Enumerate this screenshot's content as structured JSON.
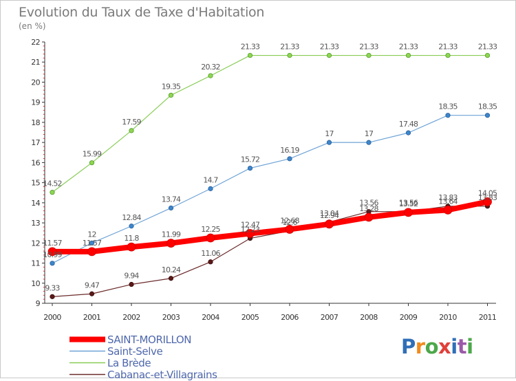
{
  "header": {
    "title": "Evolution du Taux de Taxe d'Habitation",
    "subtitle": "(en %)"
  },
  "chart_data": {
    "type": "line",
    "title": "Evolution du Taux de Taxe d'Habitation",
    "subtitle": "(en %)",
    "xlabel": "",
    "ylabel": "",
    "x": [
      "2000",
      "2001",
      "2002",
      "2003",
      "2004",
      "2005",
      "2006",
      "2007",
      "2008",
      "2009",
      "2010",
      "2011"
    ],
    "ylim": [
      9,
      22
    ],
    "yticks": [
      9,
      10,
      11,
      12,
      13,
      14,
      15,
      16,
      17,
      18,
      19,
      20,
      21,
      22
    ],
    "grid": false,
    "legend_position": "bottom-left",
    "series": [
      {
        "name": "SAINT-MORILLON",
        "color": "#ff0000",
        "values": [
          11.57,
          11.57,
          11.8,
          11.99,
          12.25,
          12.47,
          12.68,
          12.94,
          13.28,
          13.52,
          13.64,
          14.05
        ],
        "labels": [
          "11.57",
          "11.57",
          "11.8",
          "11.99",
          "12.25",
          "12.47",
          "12.68",
          "12.94",
          "13.28",
          "13.52",
          "13.64",
          "14.05"
        ]
      },
      {
        "name": "Saint-Selve",
        "color": "#6ea3d6",
        "values": [
          10.99,
          12,
          12.84,
          13.74,
          14.7,
          15.72,
          16.19,
          17,
          17,
          17.48,
          18.35,
          18.35
        ],
        "labels": [
          "10.99",
          "12",
          "12.84",
          "13.74",
          "14.7",
          "15.72",
          "16.19",
          "17",
          "17",
          "17.48",
          "18.35",
          "18.35"
        ]
      },
      {
        "name": "La Brède",
        "color": "#88cc55",
        "values": [
          14.52,
          15.99,
          17.59,
          19.35,
          20.32,
          21.33,
          21.33,
          21.33,
          21.33,
          21.33,
          21.33,
          21.33
        ],
        "labels": [
          "14.52",
          "15.99",
          "17.59",
          "19.35",
          "20.32",
          "21.33",
          "21.33",
          "21.33",
          "21.33",
          "21.33",
          "21.33",
          "21.33"
        ]
      },
      {
        "name": "Cabanac-et-Villagrains",
        "color": "#6b2a2a",
        "values": [
          9.33,
          9.47,
          9.94,
          10.24,
          11.06,
          12.23,
          12.6,
          13.04,
          13.56,
          13.56,
          13.83,
          13.83
        ],
        "labels": [
          "9.33",
          "9.47",
          "9.94",
          "10.24",
          "11.06",
          "12.23",
          "12.6",
          "13.04",
          "13.56",
          "13.56",
          "13.83",
          "13.83"
        ]
      }
    ]
  },
  "legend": {
    "items": [
      {
        "label": "SAINT-MORILLON"
      },
      {
        "label": "Saint-Selve"
      },
      {
        "label": "La Brède"
      },
      {
        "label": "Cabanac-et-Villagrains"
      }
    ]
  },
  "logo": {
    "letters": [
      "P",
      "r",
      "o",
      "x",
      "i",
      "t",
      "i"
    ],
    "colors": [
      "#2f6fb7",
      "#f08c1c",
      "#4ca84a",
      "#e0403a",
      "#2f6fb7",
      "#9a5aa8",
      "#4ca84a"
    ]
  }
}
